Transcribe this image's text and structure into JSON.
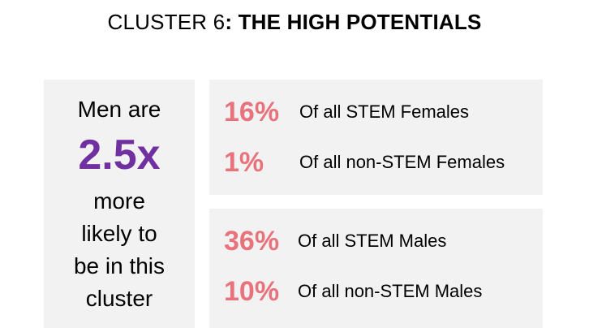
{
  "title": {
    "prefix": "CLUSTER 6",
    "bold": ": THE HIGH POTENTIALS"
  },
  "left_panel": {
    "line1": "Men are",
    "multiplier": "2.5x",
    "lines": [
      "more",
      "likely to",
      "be in this",
      "cluster"
    ]
  },
  "female_stats": [
    {
      "percent": "16%",
      "description": "Of all STEM Females"
    },
    {
      "percent": "1%",
      "description": "Of all non-STEM Females"
    }
  ],
  "male_stats": [
    {
      "percent": "36%",
      "description": "Of all STEM Males"
    },
    {
      "percent": "10%",
      "description": "Of all non-STEM Males"
    }
  ],
  "colors": {
    "accent_purple": "#7030a0",
    "percent_pink": "#e8737c",
    "panel_bg": "#f2f2f2"
  }
}
